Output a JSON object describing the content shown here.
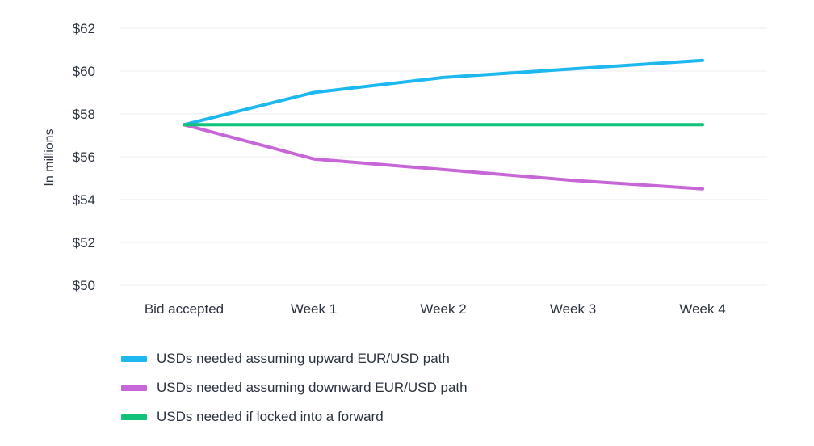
{
  "chart_data": {
    "type": "line",
    "ylabel": "In millions",
    "xlabel": "",
    "categories": [
      "Bid accepted",
      "Week 1",
      "Week 2",
      "Week 3",
      "Week 4"
    ],
    "ylim": [
      50,
      62
    ],
    "yticks": [
      50,
      52,
      54,
      56,
      58,
      60,
      62
    ],
    "ytick_labels": [
      "$50",
      "$52",
      "$54",
      "$56",
      "$58",
      "$60",
      "$62"
    ],
    "grid": "horizontal",
    "legend_position": "bottom-left",
    "series": [
      {
        "name": "USDs needed assuming upward EUR/USD path",
        "color": "#1eb8f0",
        "values": [
          57.5,
          59.0,
          59.7,
          60.1,
          60.5
        ]
      },
      {
        "name": "USDs needed assuming downward EUR/USD path",
        "color": "#c766d6",
        "values": [
          57.5,
          55.9,
          55.4,
          54.9,
          54.5
        ]
      },
      {
        "name": "USDs needed if locked into a forward",
        "color": "#11c27b",
        "values": [
          57.5,
          57.5,
          57.5,
          57.5,
          57.5
        ]
      }
    ]
  }
}
